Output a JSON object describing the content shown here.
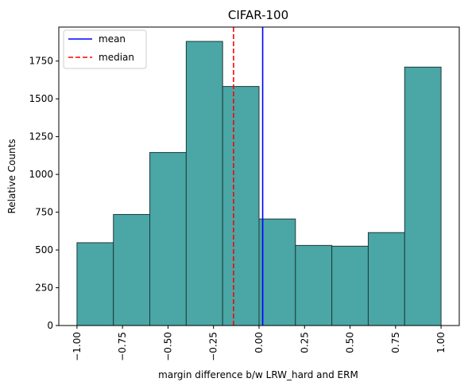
{
  "chart_data": {
    "type": "bar",
    "title": "CIFAR-100",
    "xlabel": "margin difference b/w LRW_hard and ERM",
    "ylabel": "Relative Counts",
    "xlim": [
      -1.1,
      1.1
    ],
    "ylim": [
      0,
      1975
    ],
    "bin_edges": [
      -1.0,
      -0.8,
      -0.6,
      -0.4,
      -0.2,
      0.0,
      0.2,
      0.4,
      0.6,
      0.8,
      1.0
    ],
    "values": [
      548,
      735,
      1145,
      1880,
      1582,
      705,
      530,
      525,
      615,
      1710
    ],
    "x_ticks": [
      -1.0,
      -0.75,
      -0.5,
      -0.25,
      0.0,
      0.25,
      0.5,
      0.75,
      1.0
    ],
    "x_tick_labels": [
      "−1.00",
      "−0.75",
      "−0.50",
      "−0.25",
      "0.00",
      "0.25",
      "0.50",
      "0.75",
      "1.00"
    ],
    "y_ticks": [
      0,
      250,
      500,
      750,
      1000,
      1250,
      1500,
      1750
    ],
    "y_tick_labels": [
      "0",
      "250",
      "500",
      "750",
      "1000",
      "1250",
      "1500",
      "1750"
    ],
    "mean": 0.02,
    "median": -0.14,
    "grid": false,
    "legend_position": "top-left",
    "legend": [
      {
        "label": "mean",
        "color": "#0000ff",
        "style": "solid"
      },
      {
        "label": "median",
        "color": "#ff0000",
        "style": "dashed"
      }
    ],
    "colors": {
      "bar_fill": "#4ba6a6",
      "bar_edge": "#1f3a3a",
      "mean": "#0000ff",
      "median": "#ff0000"
    }
  }
}
